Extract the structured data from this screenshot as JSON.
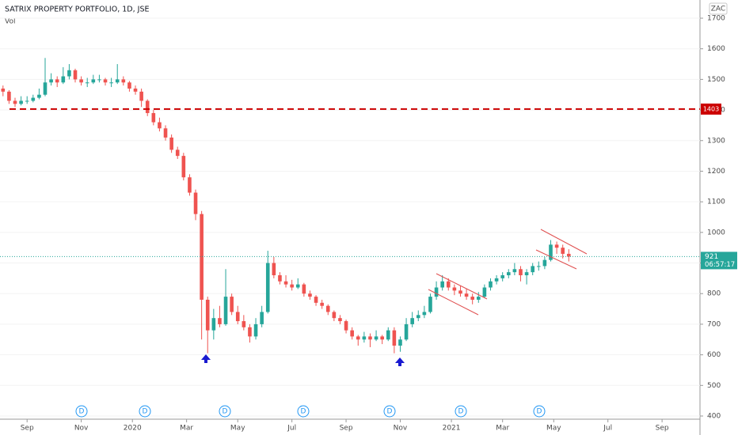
{
  "chart_data": {
    "type": "candlestick",
    "title": "SATRIX PROPERTY PORTFOLIO, 1D, JSE",
    "volume_label": "Vol",
    "currency": "ZAC",
    "up_color": "#26a69a",
    "down_color": "#ef5350",
    "grid": true,
    "ylim": [
      400,
      1700
    ],
    "yticks": [
      400,
      500,
      600,
      700,
      800,
      900,
      1000,
      1100,
      1200,
      1300,
      1400,
      1500,
      1600,
      1700
    ],
    "xlim": [
      -0.5,
      115.8
    ],
    "xticks": [
      {
        "value": 4,
        "label": "Sep"
      },
      {
        "value": 13,
        "label": "Nov"
      },
      {
        "value": 21.5,
        "label": "2020"
      },
      {
        "value": 30.5,
        "label": "Mar"
      },
      {
        "value": 39,
        "label": "May"
      },
      {
        "value": 48,
        "label": "Jul"
      },
      {
        "value": 57,
        "label": "Sep"
      },
      {
        "value": 66,
        "label": "Nov"
      },
      {
        "value": 74.5,
        "label": "2021"
      },
      {
        "value": 83,
        "label": "Mar"
      },
      {
        "value": 91.5,
        "label": "May"
      },
      {
        "value": 100.5,
        "label": "Jul"
      },
      {
        "value": 109.5,
        "label": "Sep"
      }
    ],
    "horizontal_line": {
      "value": 1403,
      "color": "#cc0000"
    },
    "last_price": 921,
    "countdown": "06:57:17",
    "dividends": [
      "D",
      "D",
      "D",
      "D",
      "D",
      "D",
      "D"
    ],
    "ohlc": [
      [
        1470,
        1480,
        1445,
        1460
      ],
      [
        1460,
        1465,
        1420,
        1430
      ],
      [
        1430,
        1440,
        1410,
        1420
      ],
      [
        1420,
        1445,
        1415,
        1430
      ],
      [
        1430,
        1445,
        1420,
        1430
      ],
      [
        1430,
        1450,
        1425,
        1440
      ],
      [
        1440,
        1470,
        1435,
        1450
      ],
      [
        1450,
        1570,
        1445,
        1490
      ],
      [
        1490,
        1520,
        1480,
        1500
      ],
      [
        1500,
        1510,
        1475,
        1490
      ],
      [
        1490,
        1540,
        1485,
        1510
      ],
      [
        1510,
        1550,
        1500,
        1530
      ],
      [
        1530,
        1535,
        1490,
        1500
      ],
      [
        1500,
        1510,
        1480,
        1490
      ],
      [
        1490,
        1505,
        1475,
        1490
      ],
      [
        1490,
        1515,
        1485,
        1500
      ],
      [
        1500,
        1515,
        1490,
        1500
      ],
      [
        1500,
        1505,
        1480,
        1490
      ],
      [
        1490,
        1505,
        1475,
        1490
      ],
      [
        1490,
        1550,
        1485,
        1500
      ],
      [
        1500,
        1510,
        1480,
        1490
      ],
      [
        1490,
        1495,
        1460,
        1470
      ],
      [
        1470,
        1480,
        1450,
        1460
      ],
      [
        1460,
        1470,
        1410,
        1430
      ],
      [
        1430,
        1435,
        1380,
        1390
      ],
      [
        1390,
        1400,
        1350,
        1360
      ],
      [
        1360,
        1375,
        1330,
        1340
      ],
      [
        1340,
        1350,
        1300,
        1310
      ],
      [
        1310,
        1320,
        1260,
        1270
      ],
      [
        1270,
        1280,
        1240,
        1250
      ],
      [
        1250,
        1260,
        1170,
        1180
      ],
      [
        1180,
        1190,
        1120,
        1130
      ],
      [
        1130,
        1140,
        1040,
        1060
      ],
      [
        1060,
        1070,
        650,
        780
      ],
      [
        780,
        790,
        605,
        680
      ],
      [
        680,
        750,
        650,
        720
      ],
      [
        720,
        760,
        690,
        700
      ],
      [
        700,
        880,
        695,
        790
      ],
      [
        790,
        800,
        730,
        740
      ],
      [
        740,
        760,
        700,
        710
      ],
      [
        710,
        730,
        680,
        690
      ],
      [
        690,
        700,
        640,
        660
      ],
      [
        660,
        720,
        650,
        700
      ],
      [
        700,
        760,
        690,
        740
      ],
      [
        740,
        940,
        735,
        900
      ],
      [
        900,
        920,
        850,
        860
      ],
      [
        860,
        870,
        830,
        840
      ],
      [
        840,
        860,
        820,
        830
      ],
      [
        830,
        845,
        810,
        820
      ],
      [
        820,
        850,
        815,
        830
      ],
      [
        830,
        835,
        790,
        800
      ],
      [
        800,
        810,
        780,
        790
      ],
      [
        790,
        795,
        760,
        770
      ],
      [
        770,
        780,
        750,
        760
      ],
      [
        760,
        765,
        730,
        740
      ],
      [
        740,
        745,
        710,
        720
      ],
      [
        720,
        730,
        700,
        710
      ],
      [
        710,
        715,
        670,
        680
      ],
      [
        680,
        690,
        650,
        660
      ],
      [
        660,
        665,
        630,
        650
      ],
      [
        650,
        675,
        640,
        660
      ],
      [
        660,
        670,
        625,
        650
      ],
      [
        650,
        680,
        645,
        660
      ],
      [
        660,
        665,
        635,
        650
      ],
      [
        650,
        690,
        645,
        680
      ],
      [
        680,
        690,
        605,
        630
      ],
      [
        630,
        660,
        610,
        650
      ],
      [
        650,
        720,
        645,
        700
      ],
      [
        700,
        740,
        690,
        720
      ],
      [
        720,
        745,
        710,
        730
      ],
      [
        730,
        760,
        720,
        740
      ],
      [
        740,
        800,
        735,
        790
      ],
      [
        790,
        840,
        780,
        820
      ],
      [
        820,
        860,
        810,
        840
      ],
      [
        840,
        850,
        810,
        820
      ],
      [
        820,
        830,
        795,
        810
      ],
      [
        810,
        825,
        790,
        800
      ],
      [
        800,
        815,
        780,
        790
      ],
      [
        790,
        800,
        765,
        780
      ],
      [
        780,
        805,
        770,
        790
      ],
      [
        790,
        830,
        785,
        820
      ],
      [
        820,
        850,
        810,
        840
      ],
      [
        840,
        860,
        830,
        850
      ],
      [
        850,
        870,
        840,
        860
      ],
      [
        860,
        880,
        850,
        870
      ],
      [
        870,
        900,
        860,
        880
      ],
      [
        880,
        890,
        840,
        860
      ],
      [
        860,
        880,
        830,
        870
      ],
      [
        870,
        900,
        860,
        890
      ],
      [
        890,
        905,
        875,
        890
      ],
      [
        890,
        920,
        880,
        910
      ],
      [
        910,
        975,
        905,
        960
      ],
      [
        960,
        970,
        930,
        950
      ],
      [
        950,
        960,
        915,
        930
      ],
      [
        930,
        945,
        905,
        921
      ]
    ]
  }
}
